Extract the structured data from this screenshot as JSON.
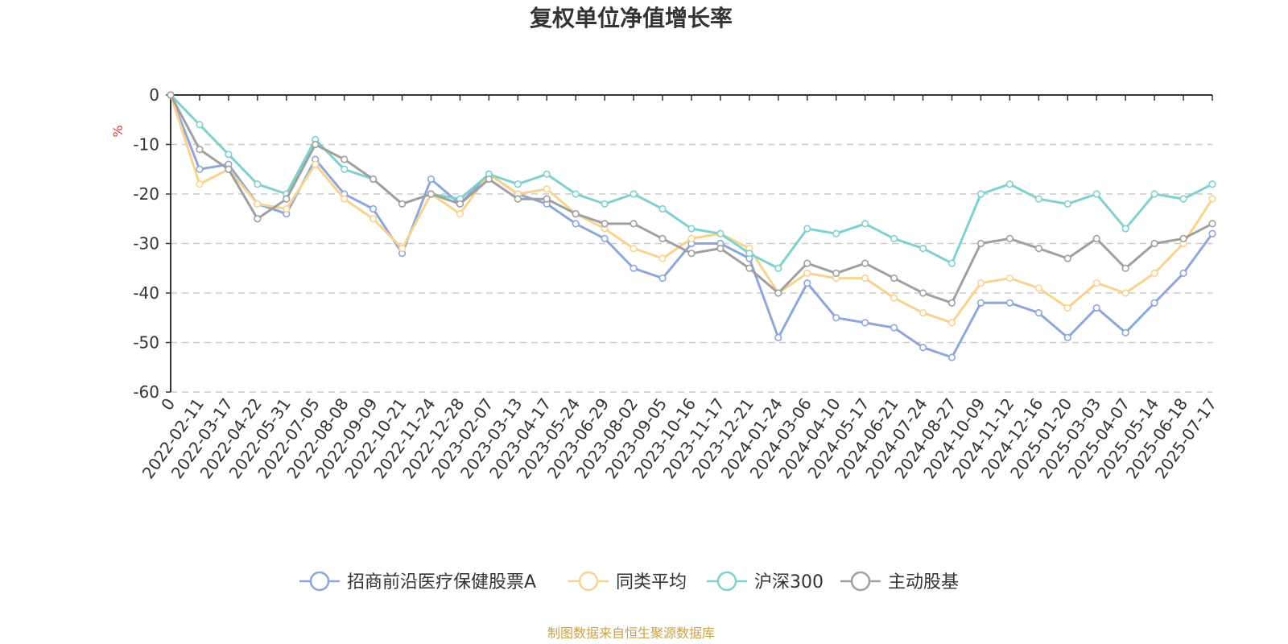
{
  "chart_data": {
    "type": "line",
    "title": "复权单位净值增长率",
    "ylabel": "%",
    "ylim": [
      -60,
      0
    ],
    "yticks": [
      0,
      -10,
      -20,
      -30,
      -40,
      -50,
      -60
    ],
    "grid": true,
    "legend_position": "bottom",
    "x": [
      "0",
      "2022-02-11",
      "2022-03-17",
      "2022-04-22",
      "2022-05-31",
      "2022-07-05",
      "2022-08-08",
      "2022-09-09",
      "2022-10-21",
      "2022-11-24",
      "2022-12-28",
      "2023-02-07",
      "2023-03-13",
      "2023-04-17",
      "2023-05-24",
      "2023-06-29",
      "2023-08-02",
      "2023-09-05",
      "2023-10-16",
      "2023-11-17",
      "2023-12-21",
      "2024-01-24",
      "2024-03-06",
      "2024-04-10",
      "2024-05-17",
      "2024-06-21",
      "2024-07-24",
      "2024-08-27",
      "2024-10-09",
      "2024-11-12",
      "2024-12-16",
      "2025-01-20",
      "2025-03-03",
      "2025-04-07",
      "2025-05-14",
      "2025-06-18",
      "2025-07-17"
    ],
    "series": [
      {
        "name": "招商前沿医疗保健股票A",
        "color": "#8da7d8",
        "values": [
          0,
          -15,
          -14,
          -22,
          -24,
          -13,
          -20,
          -23,
          -32,
          -17,
          -22,
          -16,
          -20,
          -22,
          -26,
          -29,
          -35,
          -37,
          -30,
          -30,
          -33,
          -49,
          -38,
          -45,
          -46,
          -47,
          -51,
          -53,
          -42,
          -42,
          -44,
          -49,
          -43,
          -48,
          -42,
          -36,
          -28
        ]
      },
      {
        "name": "同类平均",
        "color": "#f9d38e",
        "values": [
          0,
          -18,
          -15,
          -22,
          -23,
          -14,
          -21,
          -25,
          -31,
          -20,
          -24,
          -16,
          -20,
          -19,
          -24,
          -27,
          -31,
          -33,
          -29,
          -28,
          -31,
          -40,
          -36,
          -37,
          -37,
          -41,
          -44,
          -46,
          -38,
          -37,
          -39,
          -43,
          -38,
          -40,
          -36,
          -30,
          -21
        ]
      },
      {
        "name": "沪深300",
        "color": "#7fd1d0",
        "values": [
          0,
          -6,
          -12,
          -18,
          -20,
          -9,
          -15,
          -17,
          -22,
          -20,
          -21,
          -16,
          -18,
          -16,
          -20,
          -22,
          -20,
          -23,
          -27,
          -28,
          -32,
          -35,
          -27,
          -28,
          -26,
          -29,
          -31,
          -34,
          -20,
          -18,
          -21,
          -22,
          -20,
          -27,
          -20,
          -21,
          -18
        ]
      },
      {
        "name": "主动股基",
        "color": "#a0a0a0",
        "values": [
          0,
          -11,
          -15,
          -25,
          -21,
          -10,
          -13,
          -17,
          -22,
          -20,
          -22,
          -17,
          -21,
          -21,
          -24,
          -26,
          -26,
          -29,
          -32,
          -31,
          -35,
          -40,
          -34,
          -36,
          -34,
          -37,
          -40,
          -42,
          -30,
          -29,
          -31,
          -33,
          -29,
          -35,
          -30,
          -29,
          -26
        ]
      }
    ]
  },
  "footer": {
    "source": "制图数据来自恒生聚源数据库",
    "source_color": "#c8a24a"
  }
}
